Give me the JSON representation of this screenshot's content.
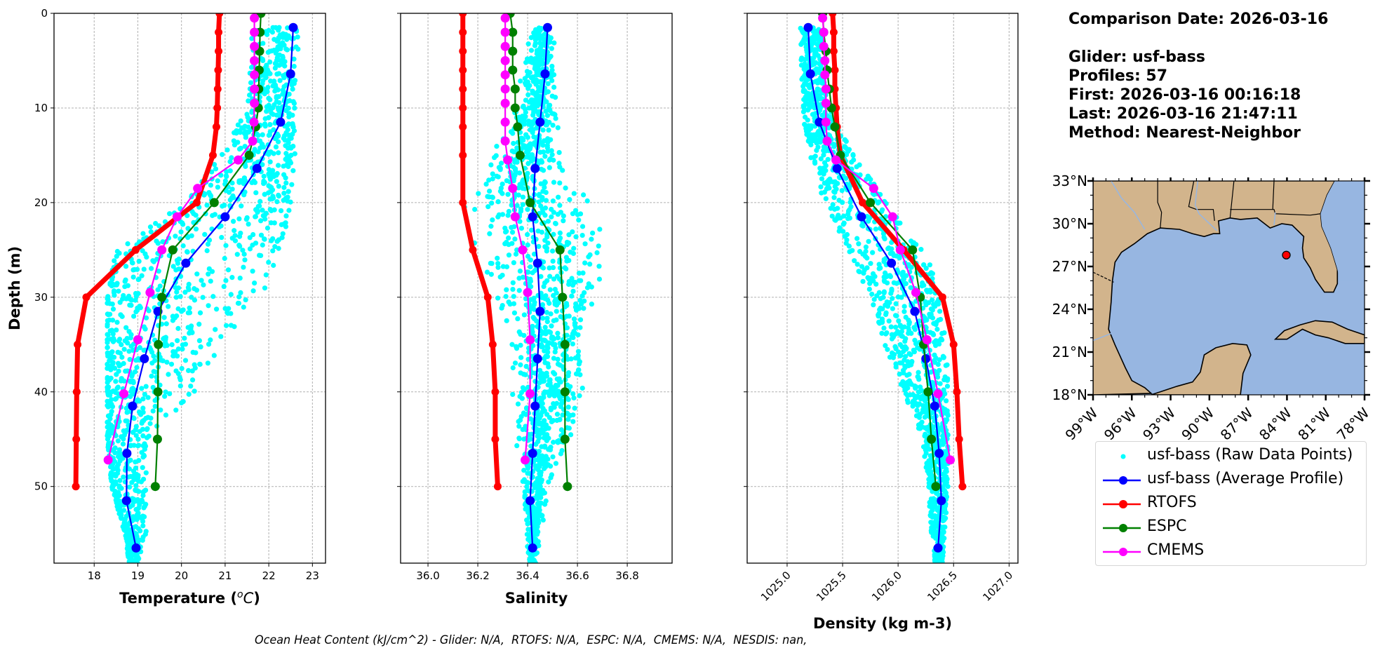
{
  "info": {
    "comparison_date": "Comparison Date: 2026-03-16",
    "glider": "Glider: usf-bass",
    "profiles": "Profiles: 57",
    "first": "First: 2026-03-16 00:16:18",
    "last": "Last: 2026-03-16 21:47:11",
    "method": "Method: Nearest-Neighbor"
  },
  "footer": "Ocean Heat Content (kJ/cm^2) - Glider: N/A,  RTOFS: N/A,  ESPC: N/A,  CMEMS: N/A,  NESDIS: nan,",
  "colors": {
    "raw": "#00ffff",
    "glider": "#0000ff",
    "rtofs": "#ff0000",
    "espc": "#008000",
    "cmems": "#ff00ff",
    "land": "#d2b48c",
    "ocean": "#97b6e1",
    "marker": "#ff0000"
  },
  "legend": [
    {
      "key": "raw",
      "label": "usf-bass (Raw Data Points)",
      "style": "dot"
    },
    {
      "key": "glider",
      "label": "usf-bass (Average Profile)",
      "style": "line"
    },
    {
      "key": "rtofs",
      "label": "RTOFS",
      "style": "line"
    },
    {
      "key": "espc",
      "label": "ESPC",
      "style": "line"
    },
    {
      "key": "cmems",
      "label": "CMEMS",
      "style": "line"
    }
  ],
  "chart_data": [
    {
      "type": "line",
      "title": "",
      "xlabel": "Temperature (°C)",
      "ylabel": "Depth (m)",
      "xlim": [
        17.08,
        23.3
      ],
      "ylim": [
        58.1,
        0
      ],
      "xticks": [
        18,
        19,
        20,
        21,
        22,
        23
      ],
      "xtick_labels": [
        "18",
        "19",
        "20",
        "21",
        "22",
        "23"
      ],
      "yticks": [
        0,
        10,
        20,
        30,
        40,
        50
      ],
      "ytick_labels": [
        "0",
        "10",
        "20",
        "30",
        "40",
        "50"
      ],
      "grid": true,
      "raw_points_envelope": {
        "depth": [
          2,
          10,
          15,
          20,
          25,
          30,
          35,
          40,
          45,
          50,
          55,
          58
        ],
        "min": [
          21.6,
          21.5,
          20.9,
          20.1,
          18.5,
          18.3,
          18.3,
          18.3,
          18.3,
          18.4,
          18.7,
          18.8
        ],
        "max": [
          22.7,
          22.6,
          22.6,
          22.5,
          22.3,
          21.9,
          20.9,
          20.3,
          19.2,
          19.2,
          19.2,
          19.0
        ]
      },
      "series": [
        {
          "name": "usf-bass (Average Profile)",
          "key": "glider",
          "depth": [
            1.5,
            6.4,
            11.5,
            16.4,
            21.5,
            26.4,
            31.5,
            36.5,
            41.5,
            46.5,
            51.5,
            56.5
          ],
          "values": [
            22.56,
            22.5,
            22.27,
            21.73,
            21.0,
            20.1,
            19.46,
            19.15,
            18.88,
            18.75,
            18.74,
            18.96
          ]
        },
        {
          "name": "RTOFS",
          "key": "rtofs",
          "depth": [
            0,
            2,
            4,
            6,
            8,
            10,
            12,
            15,
            20,
            25,
            30,
            35,
            40,
            45,
            50
          ],
          "values": [
            20.87,
            20.85,
            20.85,
            20.84,
            20.83,
            20.82,
            20.8,
            20.72,
            20.35,
            18.95,
            17.82,
            17.62,
            17.6,
            17.59,
            17.58
          ]
        },
        {
          "name": "ESPC",
          "key": "espc",
          "depth": [
            0,
            2,
            4,
            6,
            8,
            10,
            12,
            15,
            20,
            25,
            30,
            35,
            40,
            45,
            50
          ],
          "values": [
            21.82,
            21.8,
            21.79,
            21.78,
            21.77,
            21.76,
            21.7,
            21.55,
            20.75,
            19.8,
            19.55,
            19.47,
            19.46,
            19.45,
            19.4
          ]
        },
        {
          "name": "CMEMS",
          "key": "cmems",
          "depth": [
            0.5,
            2,
            3.5,
            5,
            6.5,
            8,
            9.5,
            11.5,
            13.5,
            15.5,
            18.5,
            21.5,
            25,
            29.5,
            34.5,
            40.2,
            47.2
          ],
          "values": [
            21.67,
            21.67,
            21.67,
            21.67,
            21.67,
            21.67,
            21.67,
            21.66,
            21.63,
            21.3,
            20.37,
            19.9,
            19.55,
            19.28,
            19.0,
            18.68,
            18.32
          ]
        }
      ]
    },
    {
      "type": "line",
      "title": "",
      "xlabel": "Salinity",
      "ylabel": "",
      "xlim": [
        35.89,
        36.98
      ],
      "ylim": [
        58.1,
        0
      ],
      "xticks": [
        36.0,
        36.2,
        36.4,
        36.6,
        36.8
      ],
      "xtick_labels": [
        "36.0",
        "36.2",
        "36.4",
        "36.6",
        "36.8"
      ],
      "yticks": [
        0,
        10,
        20,
        30,
        40,
        50
      ],
      "grid": true,
      "raw_points_envelope": {
        "depth": [
          2,
          10,
          15,
          18,
          20,
          25,
          30,
          35,
          40,
          45,
          50,
          55,
          58
        ],
        "min": [
          36.41,
          36.36,
          36.27,
          36.18,
          36.17,
          36.22,
          36.3,
          36.35,
          36.36,
          36.37,
          36.38,
          36.4,
          36.4
        ],
        "max": [
          36.5,
          36.51,
          36.53,
          36.56,
          36.62,
          36.72,
          36.67,
          36.63,
          36.61,
          36.55,
          36.48,
          36.45,
          36.44
        ]
      },
      "series": [
        {
          "name": "usf-bass (Average Profile)",
          "key": "glider",
          "depth": [
            1.5,
            6.4,
            11.5,
            16.4,
            21.5,
            26.4,
            31.5,
            36.5,
            41.5,
            46.5,
            51.5,
            56.5
          ],
          "values": [
            36.48,
            36.47,
            36.45,
            36.43,
            36.42,
            36.44,
            36.45,
            36.44,
            36.43,
            36.42,
            36.41,
            36.42
          ]
        },
        {
          "name": "RTOFS",
          "key": "rtofs",
          "depth": [
            0,
            2,
            4,
            6,
            8,
            10,
            12,
            15,
            20,
            25,
            30,
            35,
            40,
            45,
            50
          ],
          "values": [
            36.14,
            36.14,
            36.14,
            36.14,
            36.14,
            36.14,
            36.14,
            36.14,
            36.14,
            36.18,
            36.24,
            36.26,
            36.27,
            36.27,
            36.28
          ]
        },
        {
          "name": "ESPC",
          "key": "espc",
          "depth": [
            0,
            2,
            4,
            6,
            8,
            10,
            12,
            15,
            20,
            25,
            30,
            35,
            40,
            45,
            50
          ],
          "values": [
            36.33,
            36.34,
            36.34,
            36.34,
            36.35,
            36.35,
            36.36,
            36.37,
            36.41,
            36.53,
            36.54,
            36.55,
            36.55,
            36.55,
            36.56
          ]
        },
        {
          "name": "CMEMS",
          "key": "cmems",
          "depth": [
            0.5,
            2,
            3.5,
            5,
            6.5,
            8,
            9.5,
            11.5,
            13.5,
            15.5,
            18.5,
            21.5,
            25,
            29.5,
            34.5,
            40.2,
            47.2
          ],
          "values": [
            36.31,
            36.31,
            36.31,
            36.31,
            36.31,
            36.31,
            36.31,
            36.31,
            36.31,
            36.32,
            36.34,
            36.35,
            36.38,
            36.4,
            36.41,
            36.41,
            36.39
          ]
        }
      ]
    },
    {
      "type": "line",
      "title": "",
      "xlabel": "Density (kg m-3)",
      "ylabel": "",
      "xlim": [
        1024.64,
        1027.08
      ],
      "ylim": [
        58.1,
        0
      ],
      "xticks": [
        1025.0,
        1025.5,
        1026.0,
        1026.5,
        1027.0
      ],
      "xtick_labels": [
        "1025.0",
        "1025.5",
        "1026.0",
        "1026.5",
        "1027.0"
      ],
      "yticks": [
        0,
        10,
        20,
        30,
        40,
        50
      ],
      "grid": true,
      "raw_points_envelope": {
        "depth": [
          2,
          10,
          15,
          20,
          25,
          30,
          35,
          40,
          45,
          50,
          55,
          58
        ],
        "min": [
          1025.12,
          1025.13,
          1025.2,
          1025.33,
          1025.55,
          1025.75,
          1025.88,
          1026.05,
          1026.22,
          1026.27,
          1026.3,
          1026.33
        ],
        "moderate_max": [
          1025.3,
          1025.38,
          1025.6,
          1025.9,
          1026.25,
          1026.4,
          1026.45,
          1026.45,
          1026.45,
          1026.45,
          1026.42,
          1026.4
        ]
      },
      "series": [
        {
          "name": "usf-bass (Average Profile)",
          "key": "glider",
          "depth": [
            1.5,
            6.4,
            11.5,
            16.4,
            21.5,
            26.4,
            31.5,
            36.5,
            41.5,
            46.5,
            51.5,
            56.5
          ],
          "values": [
            1025.19,
            1025.21,
            1025.29,
            1025.45,
            1025.67,
            1025.94,
            1026.15,
            1026.25,
            1026.33,
            1026.37,
            1026.39,
            1026.36
          ]
        },
        {
          "name": "RTOFS",
          "key": "rtofs",
          "depth": [
            0,
            2,
            4,
            6,
            8,
            10,
            12,
            15,
            20,
            25,
            30,
            35,
            40,
            45,
            50
          ],
          "values": [
            1025.41,
            1025.42,
            1025.42,
            1025.43,
            1025.43,
            1025.44,
            1025.45,
            1025.48,
            1025.68,
            1026.05,
            1026.4,
            1026.5,
            1026.53,
            1026.55,
            1026.58
          ]
        },
        {
          "name": "ESPC",
          "key": "espc",
          "depth": [
            0,
            2,
            4,
            6,
            8,
            10,
            12,
            15,
            20,
            25,
            30,
            35,
            40,
            45,
            50
          ],
          "values": [
            1025.32,
            1025.33,
            1025.35,
            1025.36,
            1025.38,
            1025.4,
            1025.43,
            1025.48,
            1025.75,
            1026.13,
            1026.2,
            1026.23,
            1026.27,
            1026.3,
            1026.34
          ]
        },
        {
          "name": "CMEMS",
          "key": "cmems",
          "depth": [
            0.5,
            2,
            3.5,
            5,
            6.5,
            8,
            9.5,
            11.5,
            13.5,
            15.5,
            18.5,
            21.5,
            25,
            29.5,
            34.5,
            40.2,
            47.2
          ],
          "values": [
            1025.32,
            1025.33,
            1025.33,
            1025.34,
            1025.34,
            1025.35,
            1025.35,
            1025.35,
            1025.36,
            1025.44,
            1025.78,
            1025.95,
            1026.02,
            1026.16,
            1026.26,
            1026.36,
            1026.47
          ]
        }
      ]
    },
    {
      "type": "map",
      "title": "",
      "lon_range": [
        -99,
        -78
      ],
      "lat_range": [
        18,
        33
      ],
      "xtick_labels": [
        "99°W",
        "96°W",
        "93°W",
        "90°W",
        "87°W",
        "84°W",
        "81°W",
        "78°W"
      ],
      "ytick_labels": [
        "33°N",
        "30°N",
        "27°N",
        "24°N",
        "21°N",
        "18°N"
      ],
      "xticks": [
        -99,
        -96,
        -93,
        -90,
        -87,
        -84,
        -81,
        -78
      ],
      "yticks": [
        33,
        30,
        27,
        24,
        21,
        18
      ],
      "glider_location": {
        "lon": -84.05,
        "lat": 27.8
      }
    }
  ]
}
